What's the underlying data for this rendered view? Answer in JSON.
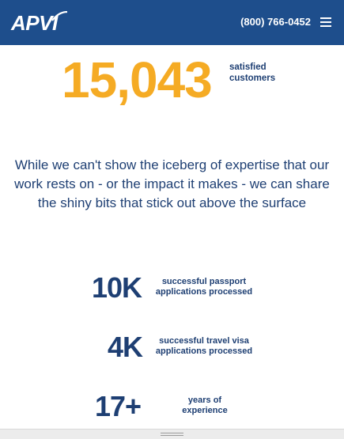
{
  "header": {
    "logo_text": "APVI",
    "phone": "(800) 766-0452",
    "menu_icon": "hamburger-menu-icon",
    "background_color": "#1e4e8c"
  },
  "hero_stat": {
    "number": "15,043",
    "label": "satisfied customers",
    "number_color": "#f5ab24"
  },
  "intro": {
    "text": "While we can't show the iceberg of expertise that our work rests on - or the impact it makes - we can share the shiny bits that stick out above the surface"
  },
  "stats": [
    {
      "number": "10K",
      "label_line1": "successful passport",
      "label_line2": "applications processed"
    },
    {
      "number": "4K",
      "label_line1": "successful travel visa",
      "label_line2": "applications processed"
    },
    {
      "number": "17+",
      "label_line1": "years of",
      "label_line2": "experience"
    }
  ],
  "text_color": "#1e3f73"
}
